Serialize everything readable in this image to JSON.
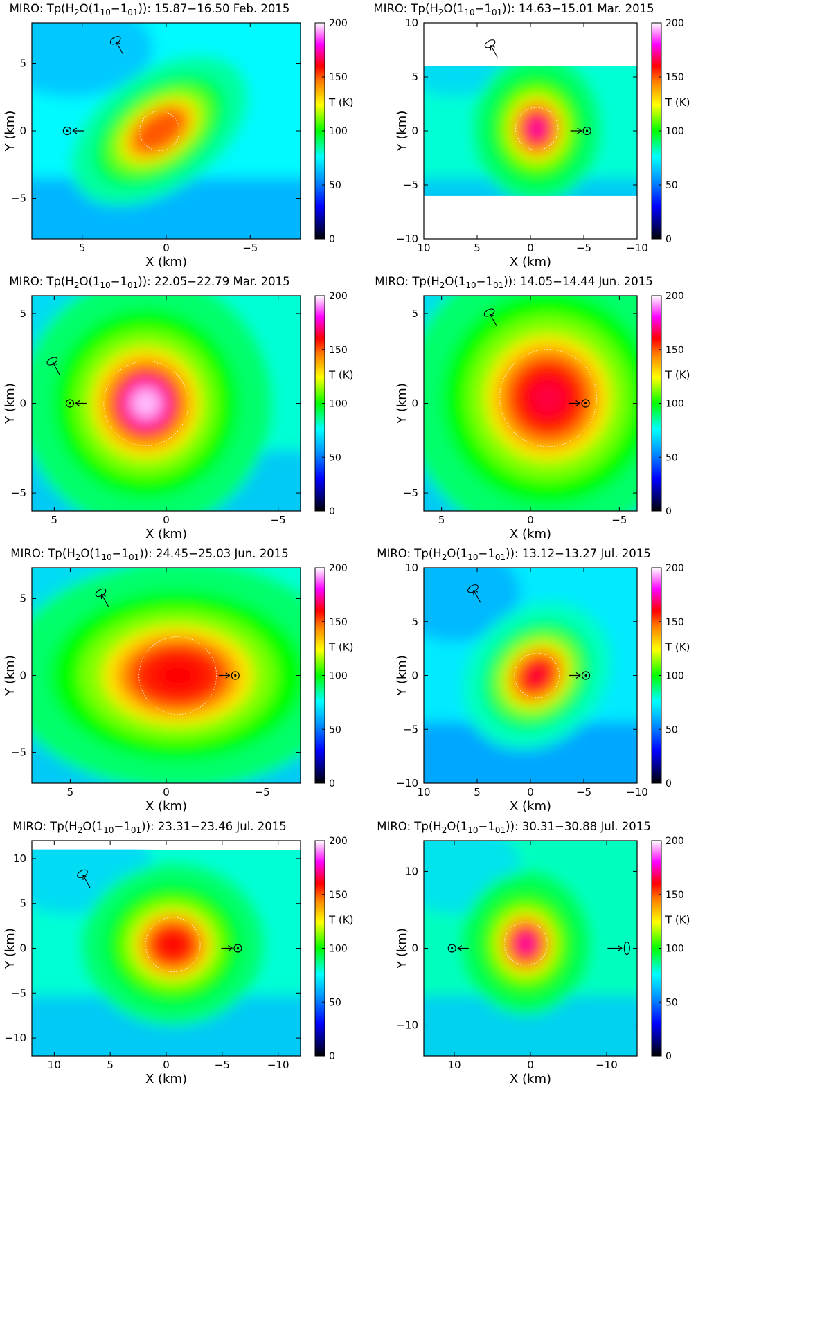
{
  "figure": {
    "colorbar_label": "T (K)",
    "colorbar_ticks": [
      0,
      50,
      100,
      150,
      200
    ],
    "x_axis_label": "X (km)",
    "y_axis_label": "Y (km)",
    "panels": [
      {
        "title_prefix": "MIRO: Tp(H",
        "title_range": "15.87−16.50 Feb. 2015",
        "xlim": [
          8,
          -8
        ],
        "ylim": [
          -8,
          8
        ],
        "xticks": [
          5,
          0,
          -5
        ],
        "yticks": [
          5,
          0,
          -5
        ],
        "data_y_range": [
          -8,
          8
        ],
        "sun_x": 5.9,
        "sun_arrow": "left",
        "pole": {
          "x": 2.9,
          "y": 6.5
        },
        "blob": {
          "x": 0.4,
          "y": 0,
          "rx": 1.9,
          "ry": 1.4,
          "tilt": -35,
          "peak": 150
        }
      },
      {
        "title_prefix": "MIRO: Tp(H",
        "title_range": "14.63−15.01 Mar. 2015",
        "xlim": [
          10,
          -10
        ],
        "ylim": [
          -10,
          10
        ],
        "xticks": [
          10,
          5,
          0,
          -5,
          -10
        ],
        "yticks": [
          10,
          5,
          0,
          -5,
          -10
        ],
        "data_y_range": [
          -6,
          6
        ],
        "sun_x": -5.3,
        "sun_arrow": "right",
        "pole": {
          "x": 3.6,
          "y": 7.8
        },
        "blob": {
          "x": -0.6,
          "y": 0.2,
          "rx": 1.9,
          "ry": 2.2,
          "tilt": 0,
          "peak": 175
        }
      },
      {
        "title_prefix": "MIRO: Tp(H",
        "title_range": "22.05−22.79 Mar. 2015",
        "xlim": [
          6,
          -6
        ],
        "ylim": [
          -6,
          6
        ],
        "xticks": [
          5,
          0,
          -5
        ],
        "yticks": [
          5,
          0,
          -5
        ],
        "data_y_range": [
          -6,
          6
        ],
        "sun_x": 4.3,
        "sun_arrow": "left",
        "pole": {
          "x": 5.0,
          "y": 2.2
        },
        "blob": {
          "x": 0.9,
          "y": 0,
          "rx": 1.8,
          "ry": 2.3,
          "tilt": 0,
          "peak": 195
        }
      },
      {
        "title_prefix": "MIRO: Tp(H",
        "title_range": "14.05−14.44 Jun. 2015",
        "xlim": [
          6,
          -6
        ],
        "ylim": [
          -6,
          6
        ],
        "xticks": [
          5,
          0,
          -5
        ],
        "yticks": [
          5,
          0,
          -5
        ],
        "data_y_range": [
          -6,
          6
        ],
        "sun_x": -3.1,
        "sun_arrow": "right",
        "pole": {
          "x": 2.2,
          "y": 4.9
        },
        "blob": {
          "x": -1.0,
          "y": 0.3,
          "rx": 2.6,
          "ry": 2.6,
          "tilt": 0,
          "peak": 165
        }
      },
      {
        "title_prefix": "MIRO: Tp(H",
        "title_range": "24.45−25.03 Jun. 2015",
        "xlim": [
          7,
          -7
        ],
        "ylim": [
          -7,
          7
        ],
        "xticks": [
          5,
          0,
          -5
        ],
        "yticks": [
          5,
          0,
          -5
        ],
        "data_y_range": [
          -7,
          7
        ],
        "sun_x": -3.6,
        "sun_arrow": "right",
        "pole": {
          "x": 3.3,
          "y": 5.2
        },
        "blob": {
          "x": -0.6,
          "y": 0,
          "rx": 2.9,
          "ry": 2.4,
          "tilt": 0,
          "peak": 160
        }
      },
      {
        "title_prefix": "MIRO: Tp(H",
        "title_range": "13.12−13.27 Jul. 2015",
        "xlim": [
          10,
          -10
        ],
        "ylim": [
          -10,
          10
        ],
        "xticks": [
          10,
          5,
          0,
          -5,
          -10
        ],
        "yticks": [
          10,
          5,
          0,
          -5,
          -10
        ],
        "data_y_range": [
          -10,
          10
        ],
        "sun_x": -5.2,
        "sun_arrow": "right",
        "pole": {
          "x": 5.2,
          "y": 7.8
        },
        "blob": {
          "x": -0.6,
          "y": 0,
          "rx": 2.0,
          "ry": 2.4,
          "tilt": 45,
          "peak": 165
        }
      },
      {
        "title_prefix": "MIRO: Tp(H",
        "title_range": "23.31−23.46 Jul. 2015",
        "xlim": [
          12,
          -12
        ],
        "ylim": [
          -12,
          12
        ],
        "xticks": [
          10,
          5,
          0,
          -5,
          -10
        ],
        "yticks": [
          10,
          5,
          0,
          -5,
          -10
        ],
        "data_y_range": [
          -12,
          11
        ],
        "sun_x": -6.4,
        "sun_arrow": "right",
        "pole": {
          "x": 7.3,
          "y": 8.0
        },
        "blob": {
          "x": -0.6,
          "y": 0.4,
          "rx": 2.6,
          "ry": 2.9,
          "tilt": 0,
          "peak": 160
        }
      },
      {
        "title_prefix": "MIRO: Tp(H",
        "title_range": "30.31−30.88 Jul. 2015",
        "xlim": [
          14,
          -14
        ],
        "ylim": [
          -14,
          14
        ],
        "xticks": [
          10,
          0,
          -10
        ],
        "yticks": [
          10,
          0,
          -10
        ],
        "data_y_range": [
          -14,
          14
        ],
        "sun_x": 10.3,
        "sun_arrow": "left",
        "pole": {
          "x": -12.3,
          "y": 0
        },
        "blob": {
          "x": 0.6,
          "y": 0.6,
          "rx": 2.7,
          "ry": 3.0,
          "tilt": 0,
          "peak": 175
        }
      }
    ]
  },
  "chart_data": [
    {
      "type": "heatmap",
      "title": "MIRO: Tp(H2O(110−101)): 15.87−16.50 Feb. 2015",
      "xlabel": "X (km)",
      "ylabel": "Y (km)",
      "xlim": [
        8,
        -8
      ],
      "ylim": [
        -8,
        8
      ],
      "colorbar": {
        "label": "T (K)",
        "range": [
          0,
          200
        ]
      },
      "peak_temperature_K": 150,
      "background_temperature_K": 75
    },
    {
      "type": "heatmap",
      "title": "MIRO: Tp(H2O(110−101)): 14.63−15.01 Mar. 2015",
      "xlabel": "X (km)",
      "ylabel": "Y (km)",
      "xlim": [
        10,
        -10
      ],
      "ylim": [
        -10,
        10
      ],
      "colorbar": {
        "label": "T (K)",
        "range": [
          0,
          200
        ]
      },
      "peak_temperature_K": 175,
      "background_temperature_K": 80
    },
    {
      "type": "heatmap",
      "title": "MIRO: Tp(H2O(110−101)): 22.05−22.79 Mar. 2015",
      "xlabel": "X (km)",
      "ylabel": "Y (km)",
      "xlim": [
        6,
        -6
      ],
      "ylim": [
        -6,
        6
      ],
      "colorbar": {
        "label": "T (K)",
        "range": [
          0,
          200
        ]
      },
      "peak_temperature_K": 195,
      "background_temperature_K": 80
    },
    {
      "type": "heatmap",
      "title": "MIRO: Tp(H2O(110−101)): 14.05−14.44 Jun. 2015",
      "xlabel": "X (km)",
      "ylabel": "Y (km)",
      "xlim": [
        6,
        -6
      ],
      "ylim": [
        -6,
        6
      ],
      "colorbar": {
        "label": "T (K)",
        "range": [
          0,
          200
        ]
      },
      "peak_temperature_K": 165,
      "background_temperature_K": 80
    },
    {
      "type": "heatmap",
      "title": "MIRO: Tp(H2O(110−101)): 24.45−25.03 Jun. 2015",
      "xlabel": "X (km)",
      "ylabel": "Y (km)",
      "xlim": [
        7,
        -7
      ],
      "ylim": [
        -7,
        7
      ],
      "colorbar": {
        "label": "T (K)",
        "range": [
          0,
          200
        ]
      },
      "peak_temperature_K": 160,
      "background_temperature_K": 80
    },
    {
      "type": "heatmap",
      "title": "MIRO: Tp(H2O(110−101)): 13.12−13.27 Jul. 2015",
      "xlabel": "X (km)",
      "ylabel": "Y (km)",
      "xlim": [
        10,
        -10
      ],
      "ylim": [
        -10,
        10
      ],
      "colorbar": {
        "label": "T (K)",
        "range": [
          0,
          200
        ]
      },
      "peak_temperature_K": 165,
      "background_temperature_K": 72
    },
    {
      "type": "heatmap",
      "title": "MIRO: Tp(H2O(110−101)): 23.31−23.46 Jul. 2015",
      "xlabel": "X (km)",
      "ylabel": "Y (km)",
      "xlim": [
        12,
        -12
      ],
      "ylim": [
        -12,
        12
      ],
      "colorbar": {
        "label": "T (K)",
        "range": [
          0,
          200
        ]
      },
      "peak_temperature_K": 160,
      "background_temperature_K": 80
    },
    {
      "type": "heatmap",
      "title": "MIRO: Tp(H2O(110−101)): 30.31−30.88 Jul. 2015",
      "xlabel": "X (km)",
      "ylabel": "Y (km)",
      "xlim": [
        14,
        -14
      ],
      "ylim": [
        -14,
        14
      ],
      "colorbar": {
        "label": "T (K)",
        "range": [
          0,
          200
        ]
      },
      "peak_temperature_K": 175,
      "background_temperature_K": 82
    }
  ]
}
